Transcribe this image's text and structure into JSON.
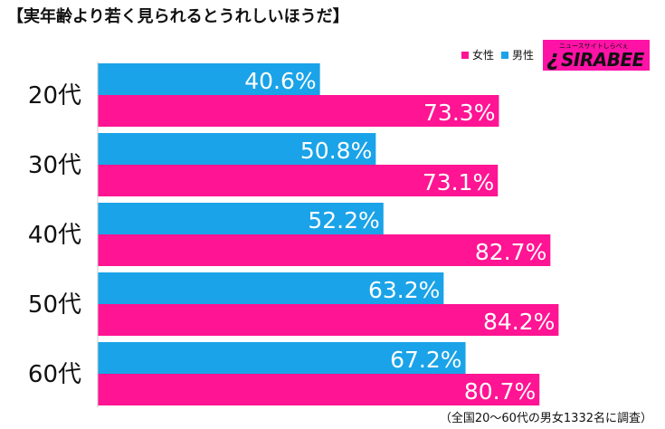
{
  "title": "【実年齢より若く見られるとうれしいほうだ】",
  "legend": {
    "female_label": "女性",
    "male_label": "男性"
  },
  "logo": {
    "text": "SIRABEE",
    "tagline": "ニュースサイトしらべぇ"
  },
  "footnote": "（全国20〜60代の男女1332名に調査）",
  "colors": {
    "female": "#ff1493",
    "male": "#1aa3e8",
    "logo": "#ff12a6"
  },
  "chart_data": {
    "type": "bar",
    "orientation": "horizontal",
    "categories": [
      "20代",
      "30代",
      "40代",
      "50代",
      "60代"
    ],
    "series": [
      {
        "name": "男性",
        "values": [
          40.6,
          50.8,
          52.2,
          63.2,
          67.2
        ],
        "color": "#1aa3e8"
      },
      {
        "name": "女性",
        "values": [
          73.3,
          73.1,
          82.7,
          84.2,
          80.7
        ],
        "color": "#ff1493"
      }
    ],
    "value_suffix": "%",
    "xlim": [
      0,
      100
    ],
    "grid": false,
    "legend_position": "top-right"
  }
}
